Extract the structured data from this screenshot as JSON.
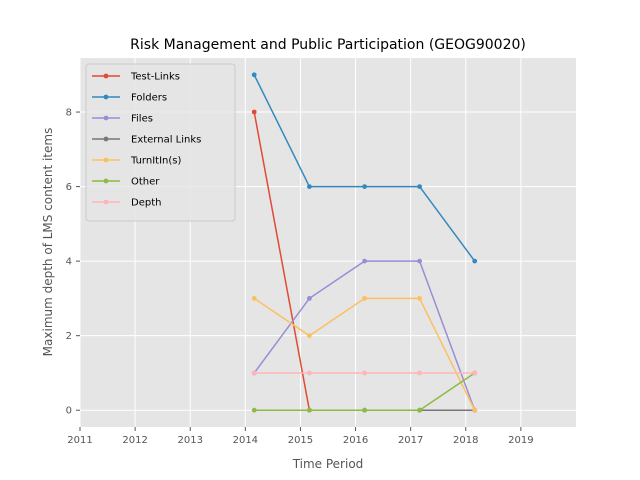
{
  "chart_data": {
    "type": "line",
    "title": "Risk Management and Public Participation (GEOG90020)",
    "xlabel": "Time Period",
    "ylabel": "Maximum depth of LMS content items",
    "xlim": [
      2011,
      2020
    ],
    "ylim": [
      -0.45,
      9.45
    ],
    "xticks": [
      2011,
      2012,
      2013,
      2014,
      2015,
      2016,
      2017,
      2018,
      2019
    ],
    "yticks": [
      0,
      2,
      4,
      6,
      8
    ],
    "grid": true,
    "legend_position": "upper-left",
    "x": [
      "2014-03-01",
      "2015-03-01",
      "2016-03-01",
      "2017-03-01",
      "2018-03-01"
    ],
    "series": [
      {
        "name": "Test-Links",
        "color": "#E24A33",
        "values": [
          8,
          0,
          null,
          null,
          null
        ]
      },
      {
        "name": "Folders",
        "color": "#348ABD",
        "values": [
          9,
          6,
          6,
          6,
          4
        ]
      },
      {
        "name": "Files",
        "color": "#988ED5",
        "values": [
          1,
          3,
          4,
          4,
          0
        ]
      },
      {
        "name": "External Links",
        "color": "#777777",
        "values": [
          null,
          null,
          0,
          0,
          0
        ]
      },
      {
        "name": "TurnItIn(s)",
        "color": "#FBC15E",
        "values": [
          3,
          2,
          3,
          3,
          0
        ]
      },
      {
        "name": "Other",
        "color": "#8EBA42",
        "values": [
          0,
          0,
          0,
          0,
          1
        ]
      },
      {
        "name": "Depth",
        "color": "#FFB5B8",
        "values": [
          1,
          1,
          1,
          1,
          1
        ]
      }
    ]
  }
}
